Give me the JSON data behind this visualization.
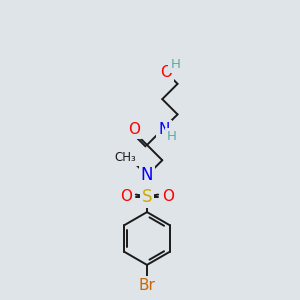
{
  "bg_color": "#dfe4e8",
  "bond_color": "#1a1a1a",
  "colors": {
    "O": "#ff0000",
    "N": "#0000ff",
    "S": "#ccaa00",
    "Br": "#cc6600",
    "H": "#5aabab",
    "C": "#1a1a1a"
  },
  "lw": 1.4,
  "fs": 10.5
}
